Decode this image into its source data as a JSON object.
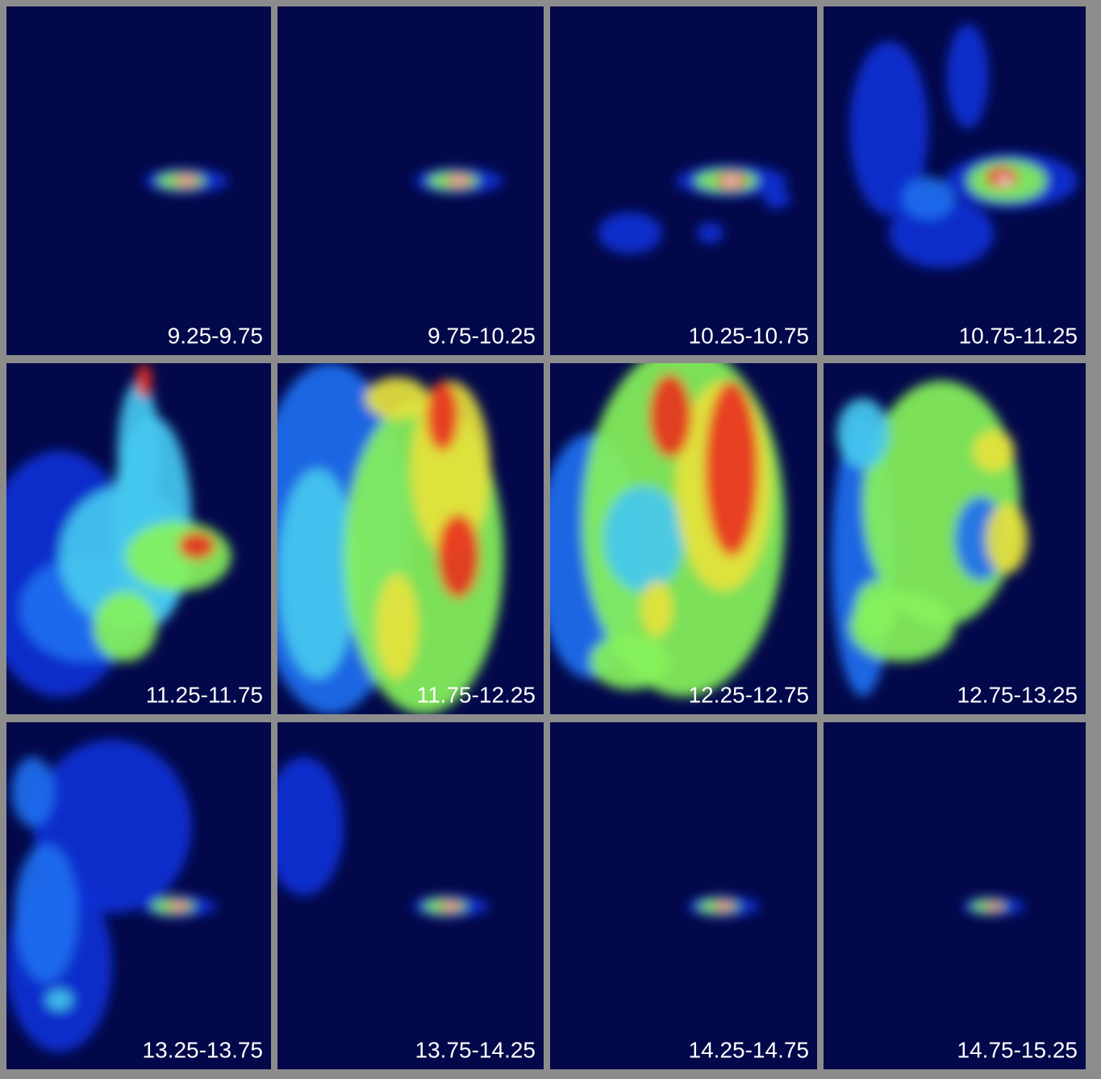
{
  "panels": [
    {
      "label": "9.25-9.75"
    },
    {
      "label": "9.75-10.25"
    },
    {
      "label": "10.25-10.75"
    },
    {
      "label": "10.75-11.25"
    },
    {
      "label": "11.25-11.75"
    },
    {
      "label": "11.75-12.25"
    },
    {
      "label": "12.25-12.75"
    },
    {
      "label": "12.75-13.25"
    },
    {
      "label": "13.25-13.75"
    },
    {
      "label": "13.75-14.25"
    },
    {
      "label": "14.25-14.75"
    },
    {
      "label": "14.75-15.25"
    }
  ]
}
